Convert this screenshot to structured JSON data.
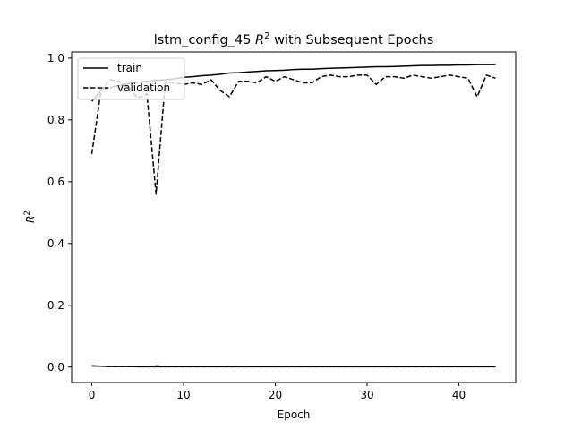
{
  "chart_data": {
    "type": "line",
    "title": {
      "prefix": "lstm_config_45 ",
      "symbol": "R",
      "superscript": "2",
      "suffix": " with Subsequent Epochs"
    },
    "xlabel": "Epoch",
    "ylabel": {
      "symbol": "R",
      "superscript": "2"
    },
    "xlim": [
      -2.2,
      46.2
    ],
    "ylim": [
      -0.05,
      1.02
    ],
    "xticks": [
      0,
      10,
      20,
      30,
      40
    ],
    "xtick_labels": [
      "0",
      "10",
      "20",
      "30",
      "40"
    ],
    "yticks": [
      0.0,
      0.2,
      0.4,
      0.6,
      0.8,
      1.0
    ],
    "ytick_labels": [
      "0.0",
      "0.2",
      "0.4",
      "0.6",
      "0.8",
      "1.0"
    ],
    "grid": false,
    "legend_position": "top-left",
    "x": [
      0,
      1,
      2,
      3,
      4,
      5,
      6,
      7,
      8,
      9,
      10,
      11,
      12,
      13,
      14,
      15,
      16,
      17,
      18,
      19,
      20,
      21,
      22,
      23,
      24,
      25,
      26,
      27,
      28,
      29,
      30,
      31,
      32,
      33,
      34,
      35,
      36,
      37,
      38,
      39,
      40,
      41,
      42,
      43,
      44
    ],
    "series": [
      {
        "name": "train",
        "style": "solid",
        "color": "#000000",
        "values": [
          0.86,
          0.895,
          0.905,
          0.912,
          0.918,
          0.922,
          0.925,
          0.928,
          0.93,
          0.933,
          0.938,
          0.94,
          0.943,
          0.945,
          0.948,
          0.952,
          0.953,
          0.955,
          0.957,
          0.959,
          0.96,
          0.961,
          0.963,
          0.964,
          0.964,
          0.966,
          0.967,
          0.968,
          0.969,
          0.97,
          0.971,
          0.972,
          0.972,
          0.973,
          0.974,
          0.975,
          0.976,
          0.976,
          0.977,
          0.977,
          0.978,
          0.978,
          0.979,
          0.979,
          0.979
        ]
      },
      {
        "name": "validation",
        "style": "dashed",
        "color": "#000000",
        "values": [
          0.69,
          0.895,
          0.93,
          0.925,
          0.905,
          0.87,
          0.885,
          0.56,
          0.92,
          0.92,
          0.915,
          0.92,
          0.915,
          0.93,
          0.895,
          0.875,
          0.925,
          0.925,
          0.92,
          0.94,
          0.925,
          0.94,
          0.93,
          0.92,
          0.92,
          0.94,
          0.945,
          0.94,
          0.94,
          0.945,
          0.945,
          0.915,
          0.94,
          0.94,
          0.935,
          0.945,
          0.94,
          0.935,
          0.94,
          0.945,
          0.94,
          0.935,
          0.875,
          0.945,
          0.935
        ]
      },
      {
        "name": "",
        "style": "solid",
        "color": "#000000",
        "values": [
          0.004,
          0.003,
          0.002,
          0.002,
          0.002,
          0.001,
          0.001,
          0.001,
          0.001,
          0.001,
          0.001,
          0.001,
          0.001,
          0.001,
          0.001,
          0.001,
          0.001,
          0.001,
          0.001,
          0.001,
          0.001,
          0.001,
          0.001,
          0.001,
          0.001,
          0.001,
          0.001,
          0.001,
          0.001,
          0.001,
          0.001,
          0.001,
          0.001,
          0.001,
          0.001,
          0.001,
          0.001,
          0.001,
          0.001,
          0.001,
          0.001,
          0.001,
          0.001,
          0.001,
          0.001
        ]
      },
      {
        "name": "",
        "style": "dashed",
        "color": "#000000",
        "values": [
          0.004,
          0.003,
          0.002,
          0.002,
          0.002,
          0.002,
          0.002,
          0.004,
          0.002,
          0.002,
          0.002,
          0.002,
          0.002,
          0.002,
          0.002,
          0.002,
          0.002,
          0.002,
          0.002,
          0.002,
          0.002,
          0.002,
          0.002,
          0.002,
          0.002,
          0.002,
          0.002,
          0.002,
          0.002,
          0.002,
          0.002,
          0.002,
          0.002,
          0.002,
          0.002,
          0.002,
          0.002,
          0.002,
          0.002,
          0.002,
          0.002,
          0.002,
          0.002,
          0.002,
          0.002
        ]
      }
    ]
  }
}
